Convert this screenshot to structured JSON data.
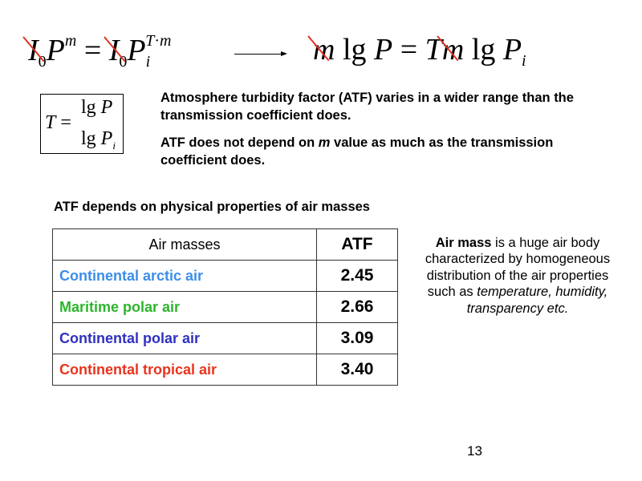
{
  "equations": {
    "left": "I₀P^m = I₀P_i^(T·m)",
    "right": "m lg P = Tm lg P_i",
    "definition": "T = lg P / lg P_i",
    "strike_color": "#e03020"
  },
  "paragraphs": [
    "Atmosphere turbidity factor (ATF) varies in a wider range than the transmission coefficient does.",
    "ATF does not depend on m value as much as the transmission coefficient does."
  ],
  "table_heading": "ATF depends on physical properties of air masses",
  "table": {
    "headers": [
      "Air masses",
      "ATF"
    ],
    "rows": [
      {
        "name": "Continental arctic air",
        "value": "2.45",
        "color": "#3b8ee8"
      },
      {
        "name": "Maritime polar air",
        "value": "2.66",
        "color": "#2db52d"
      },
      {
        "name": "Continental polar air",
        "value": "3.09",
        "color": "#3030c0"
      },
      {
        "name": "Continental tropical air",
        "value": "3.40",
        "color": "#e8341c"
      }
    ]
  },
  "side_note": {
    "term": "Air mass",
    "text": " is a huge  air body characterized by homogeneous distribution of the air properties such as ",
    "italic": "temperature, humidity, transparency etc."
  },
  "page_number": "13"
}
